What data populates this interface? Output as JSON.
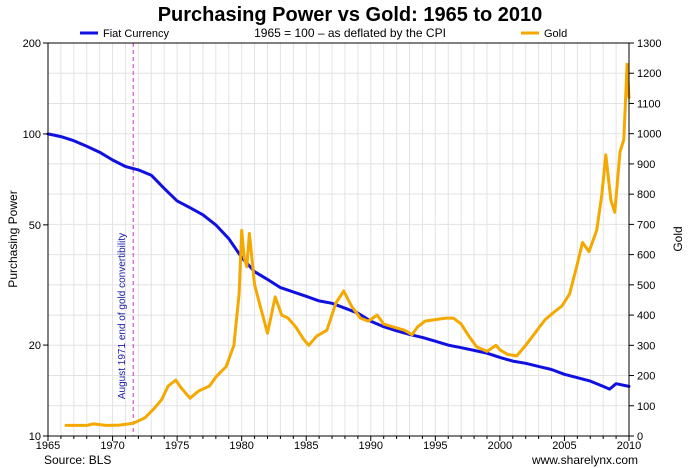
{
  "chart_data": {
    "type": "line",
    "title": "Purchasing Power vs Gold: 1965 to 2010",
    "subtitle": "1965 = 100 – as deflated by the CPI",
    "ylabel": "Purchasing Power",
    "y2label": "Gold",
    "source": "Source: BLS",
    "site": "www.sharelynx.com",
    "annotation": "August 1971 end of gold convertibility",
    "annotation_x": 1971.6,
    "xlim": [
      1965,
      2010
    ],
    "ylim": [
      10,
      200
    ],
    "y_scale": "log",
    "y2lim": [
      0,
      1300
    ],
    "grid": true,
    "legend": "top",
    "x_ticks": [
      1965,
      1970,
      1975,
      1980,
      1985,
      1990,
      1995,
      2000,
      2005,
      2010
    ],
    "x_tick_labels": [
      "1965",
      "1970",
      "1975",
      "1980",
      "1985",
      "1990",
      "1995",
      "2000",
      "2005",
      "2010"
    ],
    "y_ticks": [
      10,
      20,
      50,
      100,
      200
    ],
    "y_tick_labels": [
      "10",
      "20",
      "50",
      "100",
      "200"
    ],
    "y2_ticks": [
      0,
      100,
      200,
      300,
      400,
      500,
      600,
      700,
      800,
      900,
      1000,
      1100,
      1200,
      1300
    ],
    "y2_tick_labels": [
      "0",
      "100",
      "200",
      "300",
      "400",
      "500",
      "600",
      "700",
      "800",
      "900",
      "1000",
      "1100",
      "1200",
      "1300"
    ],
    "series": [
      {
        "name": "Fiat Currency",
        "color": "#1010e0",
        "axis": "left",
        "x": [
          1965,
          1966,
          1967,
          1968,
          1969,
          1970,
          1971,
          1972,
          1973,
          1974,
          1975,
          1976,
          1977,
          1978,
          1979,
          1980,
          1981,
          1982,
          1983,
          1984,
          1985,
          1986,
          1987,
          1988,
          1989,
          1990,
          1991,
          1992,
          1993,
          1994,
          1995,
          1996,
          1997,
          1998,
          1999,
          2000,
          2001,
          2002,
          2003,
          2004,
          2005,
          2006,
          2007,
          2008,
          2008.5,
          2009,
          2010
        ],
        "y": [
          100,
          98,
          95,
          91,
          87,
          82,
          78,
          76,
          73,
          66,
          60,
          57,
          54,
          50,
          45,
          39,
          35,
          33,
          31,
          30,
          29,
          28,
          27.5,
          26.5,
          25.5,
          24,
          23,
          22.3,
          21.7,
          21.2,
          20.6,
          20,
          19.6,
          19.2,
          18.8,
          18.2,
          17.7,
          17.4,
          17,
          16.6,
          16,
          15.6,
          15.2,
          14.6,
          14.3,
          14.9,
          14.6
        ]
      },
      {
        "name": "Gold",
        "color": "#f5a800",
        "axis": "right",
        "x": [
          1966.4,
          1968,
          1968.5,
          1969.5,
          1970.5,
          1971.6,
          1972.5,
          1973.2,
          1973.8,
          1974.3,
          1974.9,
          1975.3,
          1976,
          1976.7,
          1977.5,
          1978,
          1978.8,
          1979.4,
          1979.8,
          1980.0,
          1980.2,
          1980.4,
          1980.6,
          1981,
          1981.5,
          1982,
          1982.6,
          1983.1,
          1983.6,
          1984.2,
          1984.8,
          1985.2,
          1985.8,
          1986.6,
          1987.3,
          1987.9,
          1988.5,
          1989.2,
          1989.8,
          1990.5,
          1991,
          1991.8,
          1992.6,
          1993.2,
          1993.6,
          1994.2,
          1995,
          1995.8,
          1996.4,
          1997,
          1997.6,
          1998.2,
          1999,
          1999.7,
          2000,
          2000.6,
          2001.3,
          2002,
          2002.8,
          2003.5,
          2004.2,
          2004.8,
          2005.4,
          2006,
          2006.4,
          2006.9,
          2007.5,
          2007.9,
          2008.2,
          2008.6,
          2008.9,
          2009.3,
          2009.6,
          2009.85,
          2010
        ],
        "y": [
          35,
          35,
          40,
          35,
          36,
          42,
          60,
          90,
          120,
          165,
          185,
          160,
          125,
          150,
          165,
          195,
          230,
          300,
          470,
          680,
          590,
          560,
          670,
          500,
          420,
          340,
          460,
          400,
          390,
          360,
          320,
          300,
          330,
          350,
          440,
          480,
          430,
          390,
          380,
          400,
          370,
          360,
          350,
          335,
          360,
          380,
          385,
          390,
          390,
          370,
          330,
          295,
          280,
          300,
          285,
          270,
          265,
          300,
          345,
          385,
          410,
          430,
          470,
          570,
          640,
          610,
          680,
          800,
          930,
          780,
          740,
          940,
          980,
          1230,
          1120
        ]
      }
    ]
  }
}
